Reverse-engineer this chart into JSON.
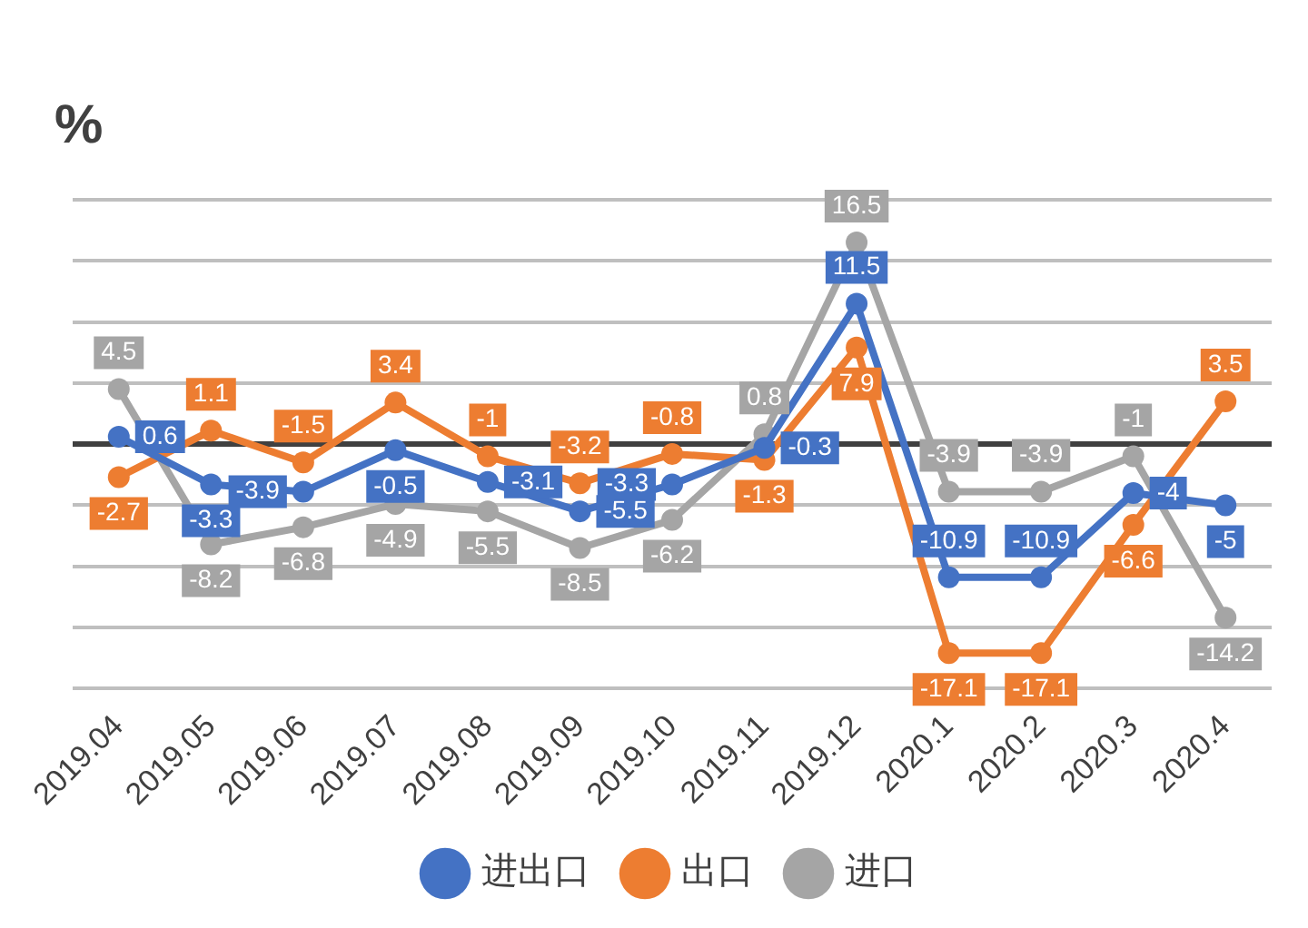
{
  "chart_data": {
    "type": "line",
    "ylabel": "%",
    "categories": [
      "2019.04",
      "2019.05",
      "2019.06",
      "2019.07",
      "2019.08",
      "2019.09",
      "2019.10",
      "2019.11",
      "2019.12",
      "2020.1",
      "2020.2",
      "2020.3",
      "2020.4"
    ],
    "series": [
      {
        "name": "进出口",
        "color": "#4472c4",
        "values": [
          0.6,
          -3.3,
          -3.9,
          -0.5,
          -3.1,
          -5.5,
          -3.3,
          -0.3,
          11.5,
          -10.9,
          -10.9,
          -4,
          -5
        ]
      },
      {
        "name": "出口",
        "color": "#ed7d31",
        "values": [
          -2.7,
          1.1,
          -1.5,
          3.4,
          -1,
          -3.2,
          -0.8,
          -1.3,
          7.9,
          -17.1,
          -17.1,
          -6.6,
          3.5
        ]
      },
      {
        "name": "进口",
        "color": "#a5a5a5",
        "values": [
          4.5,
          -8.2,
          -6.8,
          -4.9,
          -5.5,
          -8.5,
          -6.2,
          0.8,
          16.5,
          -3.9,
          -3.9,
          -1,
          -14.2
        ]
      }
    ],
    "ylim": [
      -20,
      20
    ],
    "yticks": [
      {
        "value": -20,
        "label": null
      },
      {
        "value": -15,
        "label": null
      },
      {
        "value": -10,
        "label": null
      },
      {
        "value": -5,
        "label": null
      },
      {
        "value": 0,
        "label": null
      },
      {
        "value": 5,
        "label": null
      },
      {
        "value": 10,
        "label": null
      },
      {
        "value": 15,
        "label": null
      },
      {
        "value": 20,
        "label": null
      }
    ],
    "tick_labels": "x",
    "grid": "y",
    "legend": "bottom",
    "marker": "circle",
    "line_style": "solid",
    "data_labels": true
  }
}
